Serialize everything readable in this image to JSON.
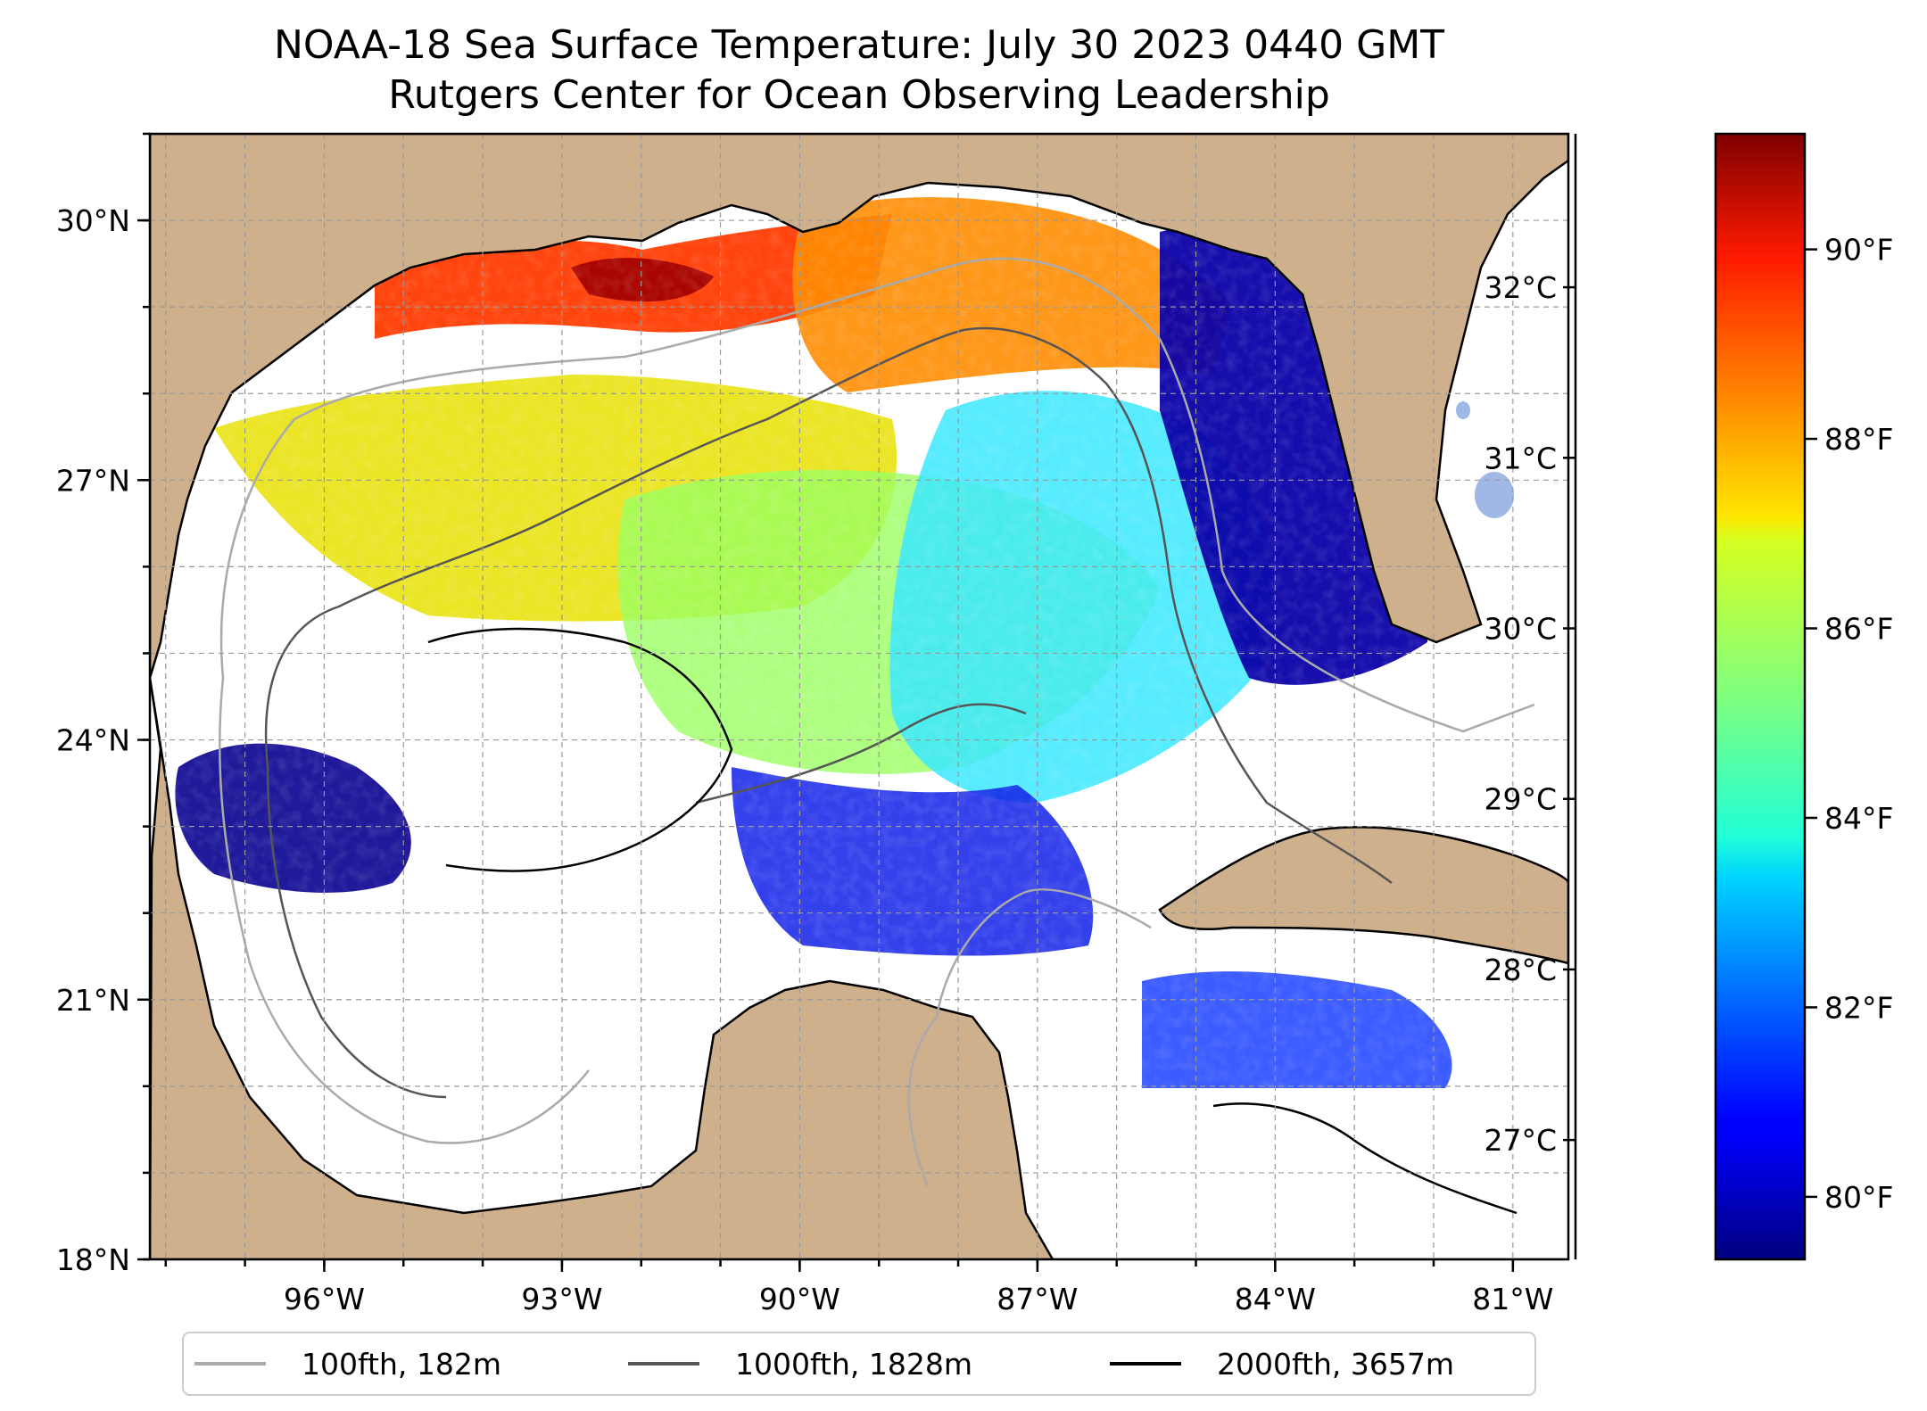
{
  "title": {
    "line1": "NOAA-18 Sea Surface Temperature: July 30 2023 0440 GMT",
    "line2": "Rutgers Center for Ocean Observing Leadership"
  },
  "map": {
    "lon_range": [
      -98.2,
      -80.3
    ],
    "lat_range": [
      18.0,
      31.0
    ],
    "lon_ticks": [
      {
        "value": -96,
        "label": "96°W"
      },
      {
        "value": -93,
        "label": "93°W"
      },
      {
        "value": -90,
        "label": "90°W"
      },
      {
        "value": -87,
        "label": "87°W"
      },
      {
        "value": -84,
        "label": "84°W"
      },
      {
        "value": -81,
        "label": "81°W"
      }
    ],
    "lat_ticks": [
      {
        "value": 30,
        "label": "30°N"
      },
      {
        "value": 27,
        "label": "27°N"
      },
      {
        "value": 24,
        "label": "24°N"
      },
      {
        "value": 21,
        "label": "21°N"
      },
      {
        "value": 18,
        "label": "18°N"
      }
    ],
    "grid": "dashed",
    "land_color": "#cfb08c",
    "lake_color": "#9fb8e6",
    "colormap": "jet"
  },
  "colorbar": {
    "colormap": "jet",
    "range_c": [
      26.3,
      32.9
    ],
    "celsius_ticks": [
      {
        "value": 32,
        "label": "32°C"
      },
      {
        "value": 31,
        "label": "31°C"
      },
      {
        "value": 30,
        "label": "30°C"
      },
      {
        "value": 29,
        "label": "29°C"
      },
      {
        "value": 28,
        "label": "28°C"
      },
      {
        "value": 27,
        "label": "27°C"
      }
    ],
    "fahrenheit_ticks": [
      {
        "value": 90,
        "label": "90°F"
      },
      {
        "value": 88,
        "label": "88°F"
      },
      {
        "value": 86,
        "label": "86°F"
      },
      {
        "value": 84,
        "label": "84°F"
      },
      {
        "value": 82,
        "label": "82°F"
      },
      {
        "value": 80,
        "label": "80°F"
      }
    ]
  },
  "legend": {
    "placement": "bottom-center",
    "items": [
      {
        "label": "100fth, 182m",
        "color": "#aaaaaa"
      },
      {
        "label": "1000fth, 1828m",
        "color": "#555555"
      },
      {
        "label": "2000fth, 3657m",
        "color": "#000000"
      }
    ]
  }
}
